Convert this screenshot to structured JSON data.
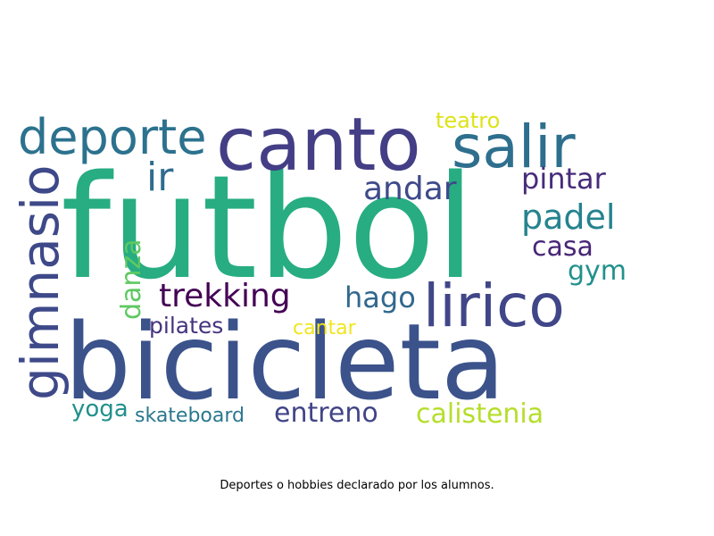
{
  "caption": "Deportes o hobbies declarado por los alumnos.",
  "colormap": "viridis",
  "words": [
    {
      "text": "futbol",
      "color": "#27ad81"
    },
    {
      "text": "bicicleta",
      "color": "#3b528b"
    },
    {
      "text": "canto",
      "color": "#433e85"
    },
    {
      "text": "salir",
      "color": "#2e6f8e"
    },
    {
      "text": "deporte",
      "color": "#2c728e"
    },
    {
      "text": "lirico",
      "color": "#404688"
    },
    {
      "text": "gimnasio",
      "color": "#3e4989"
    },
    {
      "text": "trekking",
      "color": "#440154"
    },
    {
      "text": "ir",
      "color": "#2f6c8e"
    },
    {
      "text": "andar",
      "color": "#3e4a89"
    },
    {
      "text": "hago",
      "color": "#31688e"
    },
    {
      "text": "pintar",
      "color": "#472c7a"
    },
    {
      "text": "padel",
      "color": "#25838e"
    },
    {
      "text": "casa",
      "color": "#482677"
    },
    {
      "text": "gym",
      "color": "#21918c"
    },
    {
      "text": "danza",
      "color": "#5ec962"
    },
    {
      "text": "teatro",
      "color": "#dde318"
    },
    {
      "text": "pilates",
      "color": "#46337f"
    },
    {
      "text": "cantar",
      "color": "#f1e51d"
    },
    {
      "text": "yoga",
      "color": "#21908d"
    },
    {
      "text": "skateboard",
      "color": "#2a788e"
    },
    {
      "text": "entreno",
      "color": "#414487"
    },
    {
      "text": "calistenia",
      "color": "#b5de2b"
    }
  ]
}
